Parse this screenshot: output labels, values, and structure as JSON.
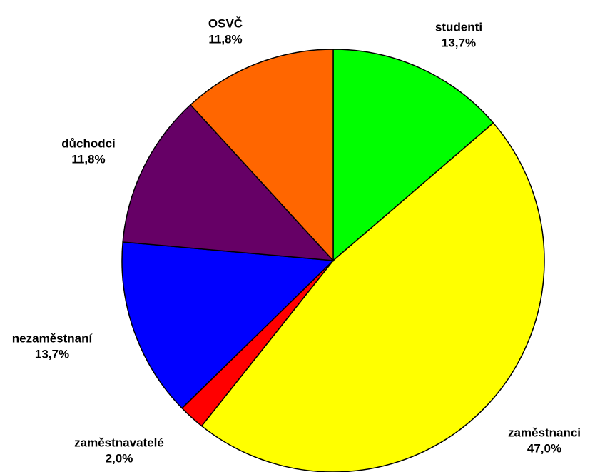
{
  "chart_data": {
    "type": "pie",
    "categories": [
      "studenti",
      "zaměstnanci",
      "zaměstnavatelé",
      "nezaměstnaní",
      "důchodci",
      "OSVČ"
    ],
    "values": [
      13.7,
      47.0,
      2.0,
      13.7,
      11.8,
      11.8
    ],
    "value_labels": [
      "13,7%",
      "47,0%",
      "2,0%",
      "13,7%",
      "11,8%",
      "11,8%"
    ],
    "colors": [
      "#00ff00",
      "#ffff00",
      "#ff0000",
      "#0000ff",
      "#660066",
      "#ff6600"
    ]
  }
}
